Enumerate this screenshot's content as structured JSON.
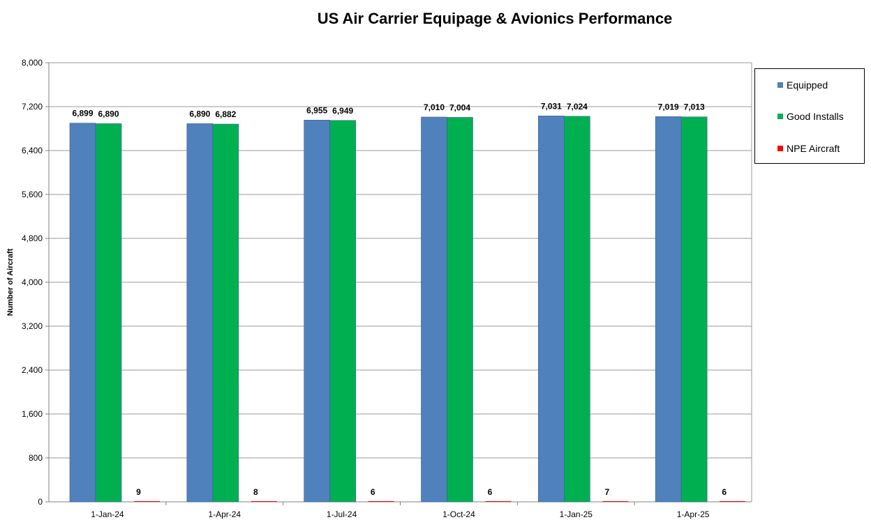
{
  "chart_data": {
    "type": "bar",
    "title": "US Air Carrier Equipage & Avionics Performance",
    "xlabel": "",
    "ylabel": "Number of Aircraft",
    "ylim": [
      0,
      8000
    ],
    "yticks": [
      0,
      800,
      1600,
      2400,
      3200,
      4000,
      4800,
      5600,
      6400,
      7200,
      8000
    ],
    "ytick_labels": [
      "0",
      "800",
      "1,600",
      "2,400",
      "3,200",
      "4,000",
      "4,800",
      "5,600",
      "6,400",
      "7,200",
      "8,000"
    ],
    "grid": true,
    "legend_position": "right",
    "categories": [
      "1-Jan-24",
      "1-Apr-24",
      "1-Jul-24",
      "1-Oct-24",
      "1-Jan-25",
      "1-Apr-25"
    ],
    "series": [
      {
        "name": "Equipped",
        "color": "#4F81BD",
        "values": [
          6899,
          6890,
          6955,
          7010,
          7031,
          7019
        ],
        "labels": [
          "6,899",
          "6,890",
          "6,955",
          "7,010",
          "7,031",
          "7,019"
        ]
      },
      {
        "name": "Good Installs",
        "color": "#00B050",
        "values": [
          6890,
          6882,
          6949,
          7004,
          7024,
          7013
        ],
        "labels": [
          "6,890",
          "6,882",
          "6,949",
          "7,004",
          "7,024",
          "7,013"
        ]
      },
      {
        "name": "NPE Aircraft",
        "color": "#FF0000",
        "values": [
          9,
          8,
          6,
          6,
          7,
          6
        ],
        "labels": [
          "9",
          "8",
          "6",
          "6",
          "7",
          "6"
        ]
      }
    ]
  }
}
